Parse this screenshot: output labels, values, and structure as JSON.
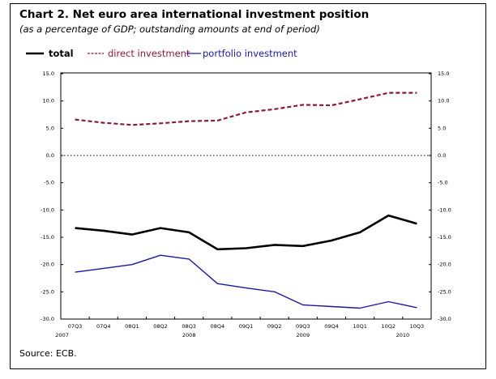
{
  "title": "Chart 2. Net euro area international investment position",
  "subtitle": "(as a percentage of GDP; outstanding amounts at end of period)",
  "source": "Source: ECB.",
  "chart_data": {
    "type": "line",
    "title": "Chart 2. Net euro area international investment position",
    "ylabel": "as a percentage of GDP",
    "ylim": [
      -30,
      15
    ],
    "yticks": [
      "15.0",
      "10.0",
      "5.0",
      "0.0",
      "-5.0",
      "-10.0",
      "-15.0",
      "-20.0",
      "-25.0",
      "-30.0"
    ],
    "yticks_values": [
      15,
      10,
      5,
      0,
      -5,
      -10,
      -15,
      -20,
      -25,
      -30
    ],
    "categories": [
      "07Q3",
      "07Q4",
      "08Q1",
      "08Q2",
      "08Q3",
      "08Q4",
      "09Q1",
      "09Q2",
      "09Q3",
      "09Q4",
      "10Q1",
      "10Q2",
      "10Q3"
    ],
    "year_labels": [
      {
        "label": "2007",
        "index": 0
      },
      {
        "label": "2008",
        "index": 4
      },
      {
        "label": "2009",
        "index": 8
      },
      {
        "label": "2010",
        "index": 11.5
      }
    ],
    "legend_placement": "top-left",
    "series": [
      {
        "name": "total",
        "color": "#000000",
        "style": "solid-thick",
        "values": [
          -13.3,
          -13.8,
          -14.5,
          -13.3,
          -14.1,
          -17.2,
          -17.0,
          -16.4,
          -16.6,
          -15.6,
          -14.1,
          -11.0,
          -12.5
        ]
      },
      {
        "name": "direct investment",
        "color": "#8b1a3a",
        "style": "dashed",
        "values": [
          6.6,
          6.0,
          5.6,
          5.9,
          6.3,
          6.4,
          7.9,
          8.5,
          9.3,
          9.2,
          10.3,
          11.5,
          11.5
        ]
      },
      {
        "name": "portfolio investment",
        "color": "#1a1aa0",
        "style": "solid",
        "values": [
          -21.4,
          -20.7,
          -20.0,
          -18.3,
          -19.0,
          -23.5,
          -24.3,
          -25.0,
          -27.4,
          -27.7,
          -28.0,
          -26.8,
          -27.9
        ]
      }
    ]
  }
}
